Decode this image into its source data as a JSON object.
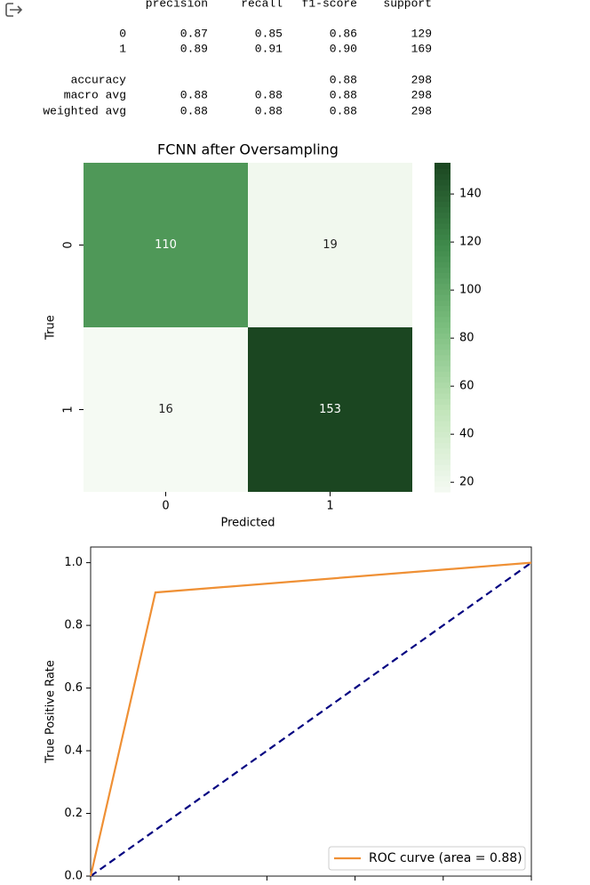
{
  "report": {
    "columns": [
      "precision",
      "recall",
      "f1-score",
      "support"
    ],
    "rows": [
      {
        "label": "0",
        "cells": [
          "0.87",
          "0.85",
          "0.86",
          "129"
        ]
      },
      {
        "label": "1",
        "cells": [
          "0.89",
          "0.91",
          "0.90",
          "169"
        ]
      },
      {
        "label": "accuracy",
        "cells": [
          null,
          null,
          "0.88",
          "298"
        ]
      },
      {
        "label": "macro avg",
        "cells": [
          "0.88",
          "0.88",
          "0.88",
          "298"
        ]
      },
      {
        "label": "weighted avg",
        "cells": [
          "0.88",
          "0.88",
          "0.88",
          "298"
        ]
      }
    ]
  },
  "chart_data": [
    {
      "type": "heatmap",
      "title": "FCNN after Oversampling",
      "x_categories": [
        "0",
        "1"
      ],
      "y_categories": [
        "0",
        "1"
      ],
      "values": [
        [
          110,
          19
        ],
        [
          16,
          153
        ]
      ],
      "xlabel": "Predicted",
      "ylabel": "True",
      "zlim": [
        16,
        153
      ],
      "zticks": [
        20,
        40,
        60,
        80,
        100,
        120,
        140
      ],
      "colormap": [
        "#f5faf3",
        "#c2e5ba",
        "#7cbf7f",
        "#3f8a4b",
        "#1b4621"
      ]
    },
    {
      "type": "line",
      "ylabel": "True Positive Rate",
      "xlim": [
        0,
        1
      ],
      "ylim": [
        0,
        1.05
      ],
      "xticks": [
        0,
        0.2,
        0.4,
        0.6,
        0.8,
        1
      ],
      "yticks": [
        {
          "value": 0,
          "label": "0.0"
        },
        0.2,
        0.4,
        0.6,
        0.8,
        {
          "value": 1,
          "label": "1.0"
        }
      ],
      "series": [
        {
          "name": "ROC curve (area = 0.88)",
          "color": "#ef9035",
          "x": [
            0,
            0.147,
            1
          ],
          "values": [
            0,
            0.905,
            1
          ]
        }
      ],
      "reference_line": {
        "color": "#000080",
        "x": [
          0,
          1
        ],
        "values": [
          0,
          1
        ]
      },
      "legend": "lower right"
    }
  ]
}
